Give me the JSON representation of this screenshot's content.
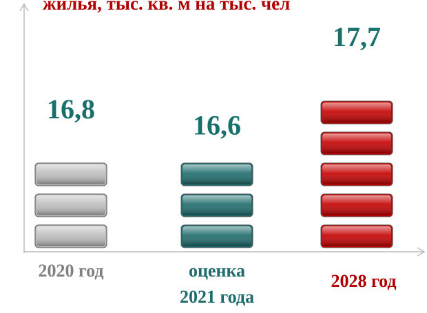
{
  "chart_data": {
    "type": "bar",
    "title": "жилья, тыс. кв. м на тыс. чел",
    "categories": [
      "2020 год",
      "оценка 2021 года",
      "2028 год"
    ],
    "values": [
      16.8,
      16.6,
      17.7
    ],
    "value_labels": [
      "16,8",
      "16,6",
      "17,7"
    ],
    "colors": [
      "#bdbdbd",
      "#1d6b6b",
      "#c40000"
    ],
    "category_colors": [
      "#808080",
      "#1d6b6b",
      "#b00000"
    ],
    "ylim": [
      15.6,
      18
    ]
  }
}
